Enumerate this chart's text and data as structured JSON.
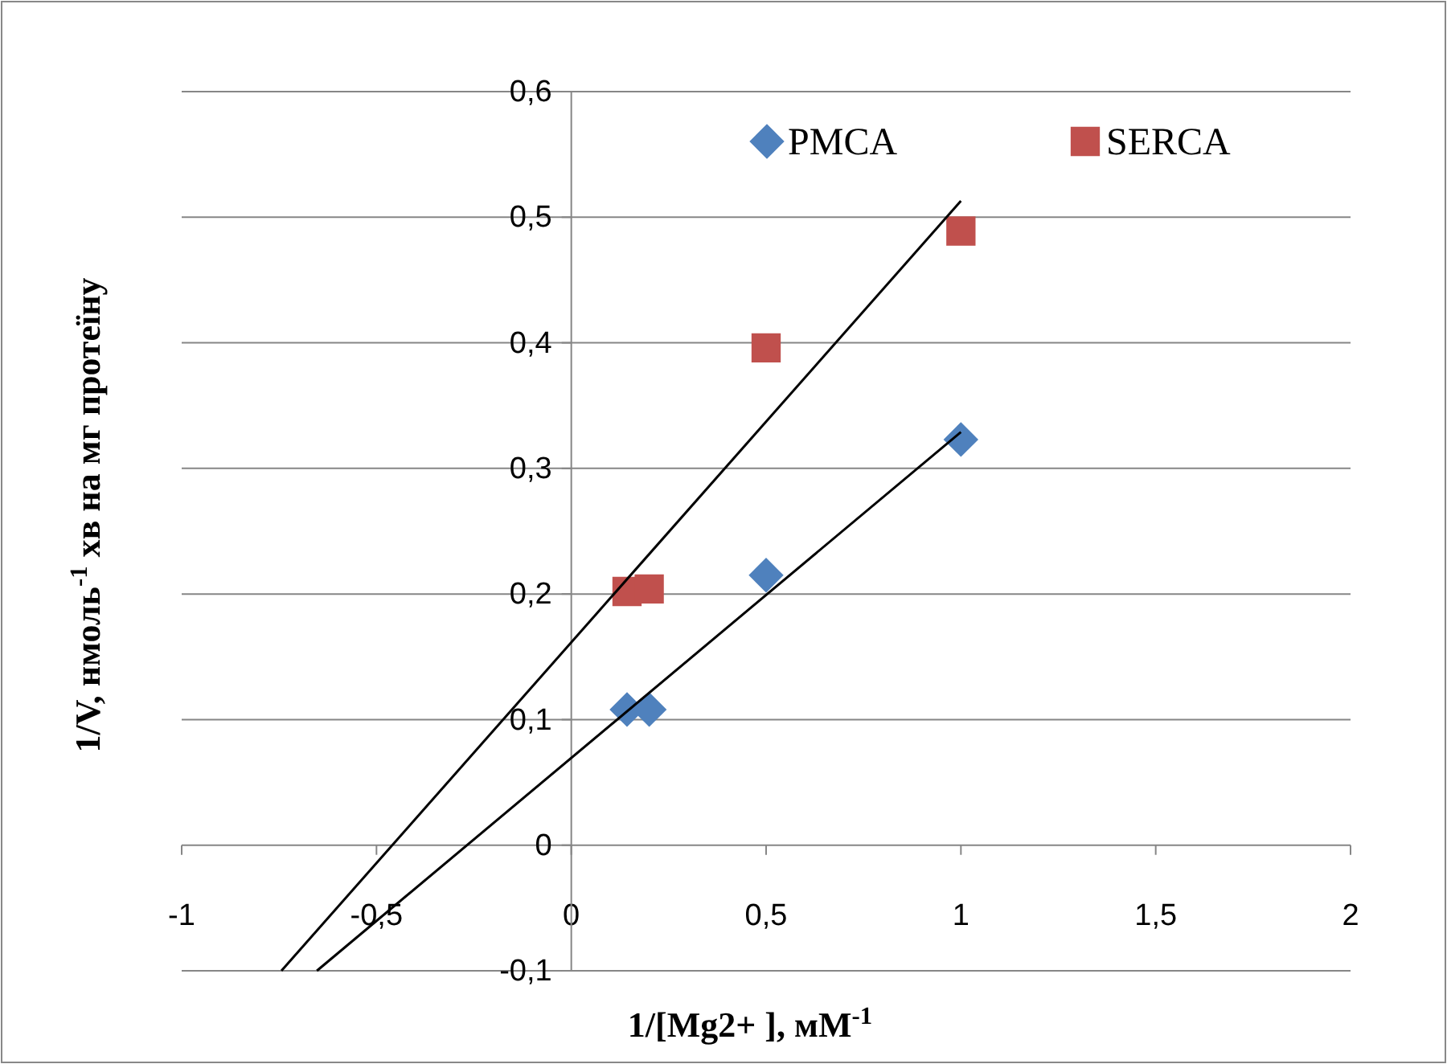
{
  "chart_data": {
    "type": "scatter",
    "xlabel": "1/[Mg2+ ], мМ$^{-1}$",
    "ylabel": "1/V, нмоль$^{-1}$ хв на мг протеїну",
    "xlim": [
      -1,
      2
    ],
    "ylim": [
      -0.1,
      0.6
    ],
    "xticks": [
      -1,
      {
        "value": -0.5,
        "label": "-0,5"
      },
      0,
      {
        "value": 0.5,
        "label": "0,5"
      },
      1,
      {
        "value": 1.5,
        "label": "1,5"
      },
      2
    ],
    "yticks": [
      {
        "value": -0.1,
        "label": "-0,1"
      },
      0,
      {
        "value": 0.1,
        "label": "0,1"
      },
      {
        "value": 0.2,
        "label": "0,2"
      },
      {
        "value": 0.3,
        "label": "0,3"
      },
      {
        "value": 0.4,
        "label": "0,4"
      },
      {
        "value": 0.5,
        "label": "0,5"
      },
      {
        "value": 0.6,
        "label": "0,6"
      }
    ],
    "grid": "y",
    "legend": "top right",
    "series": [
      {
        "name": "PMCA",
        "color": "#4f81bd",
        "marker": "diamond",
        "x": [
          0.143,
          0.2,
          0.5,
          1
        ],
        "values": [
          0.108,
          0.108,
          0.215,
          0.323
        ]
      },
      {
        "name": "SERCA",
        "color": "#c0504d",
        "marker": "square",
        "x": [
          0.143,
          0.2,
          0.5,
          1
        ],
        "values": [
          0.202,
          0.204,
          0.396,
          0.489
        ]
      },
      {
        "type": "line",
        "color": "#000000",
        "marker": "none",
        "x": [
          -0.653,
          1
        ],
        "values": [
          -0.1,
          0.329
        ]
      },
      {
        "type": "line",
        "color": "#000000",
        "marker": "none",
        "x": [
          -0.744,
          1
        ],
        "values": [
          -0.1,
          0.513
        ]
      }
    ]
  }
}
